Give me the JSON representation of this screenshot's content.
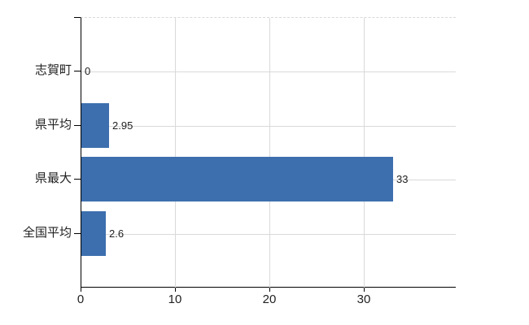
{
  "chart_data": {
    "type": "bar",
    "orientation": "horizontal",
    "title": "",
    "xlabel": "",
    "ylabel": "",
    "categories": [
      "志賀町",
      "県平均",
      "県最大",
      "全国平均"
    ],
    "values": [
      0,
      2.95,
      33,
      2.6
    ],
    "data_labels": [
      "0",
      "2.95",
      "33",
      "2.6"
    ],
    "x_ticks": [
      0,
      10,
      20,
      30
    ],
    "x_tick_labels": [
      "0",
      "10",
      "20",
      "30"
    ],
    "xlim": [
      0,
      39.6
    ],
    "grid": true,
    "legend": "none",
    "colors": {
      "bar": "#3d6fae",
      "grid": "#d9d9d9",
      "axis": "#000000",
      "text": "#222222"
    }
  }
}
